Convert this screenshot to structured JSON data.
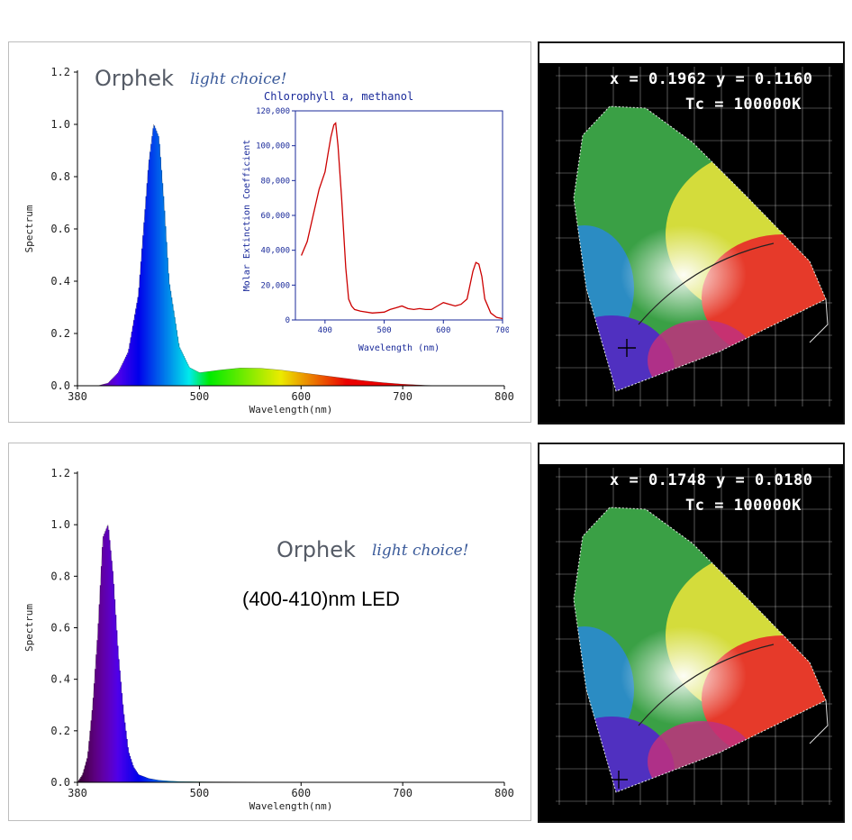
{
  "brand": {
    "name": "Orphek",
    "slogan": "light choice!"
  },
  "top": {
    "readout": {
      "xy": "x = 0.1962 y = 0.1160",
      "tc": "Tc = 100000K"
    }
  },
  "bottom": {
    "readout": {
      "xy": "x = 0.1748 y = 0.0180",
      "tc": "Tc = 100000K"
    },
    "led_label": "(400-410)nm LED"
  },
  "chart_data": [
    {
      "type": "area",
      "title": "",
      "xlabel": "Wavelength(nm)",
      "ylabel": "Spectrum",
      "xlim": [
        380,
        800
      ],
      "ylim": [
        0,
        1.2
      ],
      "xticks": [
        "380",
        "500",
        "600",
        "700",
        "800"
      ],
      "yticks": [
        "0.0",
        "0.2",
        "0.4",
        "0.6",
        "0.8",
        "1.0",
        "1.2"
      ],
      "grid": false,
      "fill": "wavelength-color",
      "series": [
        {
          "x": [
            400,
            410,
            420,
            430,
            440,
            445,
            450,
            455,
            460,
            465,
            470,
            480,
            490,
            500,
            510,
            520,
            540,
            560,
            580,
            600,
            620,
            640,
            660,
            680,
            700,
            720,
            735
          ],
          "y": [
            0.0,
            0.01,
            0.05,
            0.13,
            0.35,
            0.6,
            0.85,
            1.0,
            0.95,
            0.7,
            0.4,
            0.15,
            0.07,
            0.05,
            0.055,
            0.06,
            0.068,
            0.067,
            0.06,
            0.05,
            0.04,
            0.03,
            0.02,
            0.012,
            0.006,
            0.002,
            0.0
          ]
        }
      ]
    },
    {
      "type": "line",
      "title": "Chlorophyll a, methanol",
      "xlabel": "Wavelength (nm)",
      "ylabel": "Molar Extinction Coefficient",
      "xlim": [
        350,
        700
      ],
      "ylim": [
        0,
        120000
      ],
      "xticks": [
        "400",
        "500",
        "600",
        "700"
      ],
      "yticks": [
        "0",
        "20,000",
        "40,000",
        "60,000",
        "80,000",
        "100,000",
        "120,000"
      ],
      "color": "#cc0000",
      "series": [
        {
          "x": [
            360,
            370,
            380,
            390,
            400,
            405,
            410,
            415,
            418,
            422,
            428,
            435,
            440,
            445,
            450,
            460,
            480,
            500,
            510,
            520,
            530,
            540,
            550,
            560,
            570,
            580,
            590,
            600,
            610,
            620,
            630,
            640,
            650,
            655,
            660,
            665,
            670,
            680,
            690,
            700
          ],
          "y": [
            37000,
            45000,
            60000,
            75000,
            85000,
            95000,
            105000,
            112000,
            113000,
            100000,
            70000,
            30000,
            12000,
            8000,
            6000,
            5000,
            4000,
            4500,
            6000,
            7000,
            8000,
            6500,
            6000,
            6500,
            6000,
            6000,
            8000,
            10000,
            9000,
            8000,
            9000,
            12000,
            28000,
            33000,
            32000,
            25000,
            12000,
            4000,
            1500,
            800
          ]
        }
      ]
    },
    {
      "type": "area",
      "title": "",
      "xlabel": "Wavelength(nm)",
      "ylabel": "Spectrum",
      "xlim": [
        380,
        800
      ],
      "ylim": [
        0,
        1.2
      ],
      "xticks": [
        "380",
        "500",
        "600",
        "700",
        "800"
      ],
      "yticks": [
        "0.0",
        "0.2",
        "0.4",
        "0.6",
        "0.8",
        "1.0",
        "1.2"
      ],
      "grid": false,
      "fill": "wavelength-color",
      "series": [
        {
          "x": [
            380,
            385,
            390,
            395,
            400,
            405,
            410,
            415,
            420,
            425,
            430,
            435,
            440,
            450,
            460,
            470,
            480,
            500,
            600,
            800
          ],
          "y": [
            0.0,
            0.03,
            0.1,
            0.3,
            0.58,
            0.95,
            1.0,
            0.8,
            0.5,
            0.28,
            0.12,
            0.06,
            0.03,
            0.015,
            0.008,
            0.005,
            0.003,
            0.002,
            0.0,
            0.0
          ]
        }
      ]
    }
  ]
}
